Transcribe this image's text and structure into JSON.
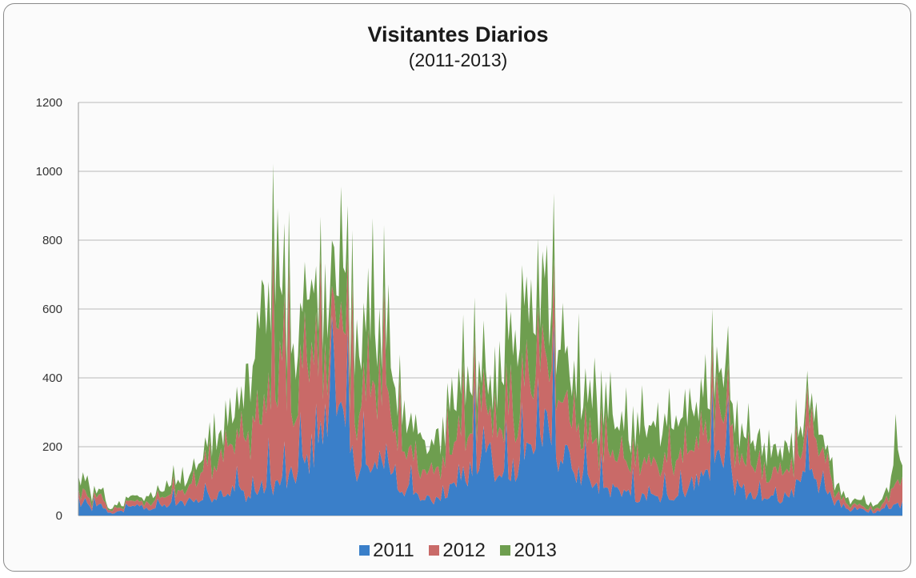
{
  "chart_data": {
    "type": "area",
    "stacked": true,
    "title": "Visitantes Diarios",
    "subtitle": "(2011-2013)",
    "ylim": [
      0,
      1200
    ],
    "yticks": [
      0,
      200,
      400,
      600,
      800,
      1000,
      1200
    ],
    "grid": true,
    "legend_position": "bottom",
    "point_count": 365,
    "series": [
      {
        "name": "2011",
        "color": "#3a7fc9",
        "keypoints": [
          [
            0,
            30
          ],
          [
            3,
            45
          ],
          [
            6,
            20
          ],
          [
            10,
            35
          ],
          [
            14,
            5
          ],
          [
            16,
            10
          ],
          [
            20,
            15
          ],
          [
            24,
            40
          ],
          [
            28,
            20
          ],
          [
            32,
            25
          ],
          [
            36,
            30
          ],
          [
            40,
            35
          ],
          [
            44,
            40
          ],
          [
            48,
            45
          ],
          [
            52,
            50
          ],
          [
            56,
            60
          ],
          [
            60,
            70
          ],
          [
            64,
            75
          ],
          [
            68,
            85
          ],
          [
            72,
            80
          ],
          [
            76,
            60
          ],
          [
            80,
            90
          ],
          [
            84,
            100
          ],
          [
            88,
            110
          ],
          [
            92,
            110
          ],
          [
            96,
            140
          ],
          [
            100,
            170
          ],
          [
            104,
            230
          ],
          [
            108,
            280
          ],
          [
            110,
            330
          ],
          [
            112,
            370
          ],
          [
            113,
            580
          ],
          [
            114,
            520
          ],
          [
            116,
            340
          ],
          [
            118,
            250
          ],
          [
            120,
            200
          ],
          [
            124,
            170
          ],
          [
            128,
            150
          ],
          [
            132,
            140
          ],
          [
            136,
            220
          ],
          [
            140,
            100
          ],
          [
            144,
            90
          ],
          [
            146,
            80
          ],
          [
            150,
            60
          ],
          [
            154,
            50
          ],
          [
            158,
            60
          ],
          [
            162,
            80
          ],
          [
            166,
            100
          ],
          [
            170,
            130
          ],
          [
            174,
            150
          ],
          [
            178,
            200
          ],
          [
            180,
            260
          ],
          [
            182,
            150
          ],
          [
            186,
            120
          ],
          [
            190,
            150
          ],
          [
            194,
            180
          ],
          [
            198,
            220
          ],
          [
            202,
            240
          ],
          [
            206,
            280
          ],
          [
            210,
            250
          ],
          [
            214,
            190
          ],
          [
            218,
            170
          ],
          [
            222,
            120
          ],
          [
            226,
            100
          ],
          [
            230,
            85
          ],
          [
            234,
            90
          ],
          [
            238,
            80
          ],
          [
            242,
            70
          ],
          [
            246,
            60
          ],
          [
            250,
            60
          ],
          [
            254,
            60
          ],
          [
            258,
            55
          ],
          [
            262,
            70
          ],
          [
            266,
            80
          ],
          [
            270,
            100
          ],
          [
            274,
            120
          ],
          [
            278,
            150
          ],
          [
            282,
            200
          ],
          [
            286,
            230
          ],
          [
            290,
            100
          ],
          [
            294,
            70
          ],
          [
            298,
            60
          ],
          [
            302,
            50
          ],
          [
            306,
            60
          ],
          [
            310,
            60
          ],
          [
            314,
            70
          ],
          [
            318,
            100
          ],
          [
            322,
            130
          ],
          [
            326,
            110
          ],
          [
            330,
            80
          ],
          [
            334,
            50
          ],
          [
            338,
            30
          ],
          [
            342,
            15
          ],
          [
            346,
            20
          ],
          [
            350,
            10
          ],
          [
            354,
            15
          ],
          [
            358,
            30
          ],
          [
            362,
            40
          ],
          [
            364,
            30
          ]
        ]
      },
      {
        "name": "2012",
        "color": "#c96a68",
        "keypoints": [
          [
            0,
            30
          ],
          [
            3,
            35
          ],
          [
            6,
            15
          ],
          [
            10,
            30
          ],
          [
            14,
            10
          ],
          [
            16,
            10
          ],
          [
            20,
            10
          ],
          [
            24,
            20
          ],
          [
            28,
            15
          ],
          [
            32,
            20
          ],
          [
            36,
            25
          ],
          [
            40,
            30
          ],
          [
            44,
            35
          ],
          [
            48,
            40
          ],
          [
            52,
            60
          ],
          [
            56,
            90
          ],
          [
            60,
            110
          ],
          [
            64,
            120
          ],
          [
            68,
            140
          ],
          [
            72,
            130
          ],
          [
            76,
            180
          ],
          [
            80,
            230
          ],
          [
            84,
            320
          ],
          [
            88,
            380
          ],
          [
            90,
            460
          ],
          [
            94,
            200
          ],
          [
            98,
            250
          ],
          [
            102,
            280
          ],
          [
            106,
            260
          ],
          [
            110,
            170
          ],
          [
            112,
            150
          ],
          [
            113,
            150
          ],
          [
            114,
            150
          ],
          [
            116,
            280
          ],
          [
            118,
            270
          ],
          [
            120,
            200
          ],
          [
            124,
            220
          ],
          [
            128,
            240
          ],
          [
            132,
            260
          ],
          [
            136,
            300
          ],
          [
            140,
            160
          ],
          [
            144,
            120
          ],
          [
            146,
            100
          ],
          [
            150,
            90
          ],
          [
            154,
            80
          ],
          [
            158,
            100
          ],
          [
            162,
            120
          ],
          [
            166,
            130
          ],
          [
            170,
            140
          ],
          [
            174,
            130
          ],
          [
            178,
            150
          ],
          [
            180,
            160
          ],
          [
            182,
            100
          ],
          [
            186,
            130
          ],
          [
            190,
            160
          ],
          [
            194,
            180
          ],
          [
            198,
            200
          ],
          [
            202,
            230
          ],
          [
            206,
            220
          ],
          [
            210,
            190
          ],
          [
            214,
            170
          ],
          [
            218,
            160
          ],
          [
            222,
            100
          ],
          [
            226,
            110
          ],
          [
            230,
            120
          ],
          [
            234,
            110
          ],
          [
            238,
            100
          ],
          [
            242,
            90
          ],
          [
            246,
            90
          ],
          [
            250,
            100
          ],
          [
            254,
            90
          ],
          [
            258,
            90
          ],
          [
            262,
            100
          ],
          [
            266,
            110
          ],
          [
            270,
            120
          ],
          [
            274,
            140
          ],
          [
            278,
            130
          ],
          [
            282,
            120
          ],
          [
            286,
            130
          ],
          [
            290,
            100
          ],
          [
            294,
            90
          ],
          [
            298,
            90
          ],
          [
            302,
            80
          ],
          [
            306,
            80
          ],
          [
            310,
            80
          ],
          [
            314,
            80
          ],
          [
            318,
            90
          ],
          [
            322,
            120
          ],
          [
            326,
            110
          ],
          [
            330,
            70
          ],
          [
            334,
            40
          ],
          [
            338,
            20
          ],
          [
            342,
            15
          ],
          [
            346,
            10
          ],
          [
            350,
            10
          ],
          [
            354,
            10
          ],
          [
            358,
            30
          ],
          [
            362,
            80
          ],
          [
            364,
            100
          ]
        ]
      },
      {
        "name": "2013",
        "color": "#6e9e4f",
        "keypoints": [
          [
            0,
            50
          ],
          [
            3,
            40
          ],
          [
            6,
            20
          ],
          [
            10,
            20
          ],
          [
            14,
            5
          ],
          [
            16,
            10
          ],
          [
            20,
            10
          ],
          [
            24,
            15
          ],
          [
            28,
            15
          ],
          [
            32,
            20
          ],
          [
            36,
            20
          ],
          [
            40,
            25
          ],
          [
            44,
            35
          ],
          [
            48,
            40
          ],
          [
            52,
            50
          ],
          [
            56,
            60
          ],
          [
            60,
            70
          ],
          [
            64,
            80
          ],
          [
            68,
            100
          ],
          [
            72,
            120
          ],
          [
            76,
            200
          ],
          [
            80,
            260
          ],
          [
            84,
            300
          ],
          [
            88,
            350
          ],
          [
            90,
            200
          ],
          [
            94,
            150
          ],
          [
            98,
            180
          ],
          [
            102,
            190
          ],
          [
            106,
            200
          ],
          [
            110,
            150
          ],
          [
            112,
            120
          ],
          [
            113,
            190
          ],
          [
            114,
            140
          ],
          [
            116,
            160
          ],
          [
            118,
            170
          ],
          [
            120,
            150
          ],
          [
            124,
            180
          ],
          [
            128,
            200
          ],
          [
            132,
            210
          ],
          [
            136,
            160
          ],
          [
            140,
            130
          ],
          [
            144,
            120
          ],
          [
            146,
            110
          ],
          [
            150,
            100
          ],
          [
            154,
            90
          ],
          [
            158,
            100
          ],
          [
            162,
            110
          ],
          [
            166,
            120
          ],
          [
            170,
            120
          ],
          [
            174,
            110
          ],
          [
            178,
            100
          ],
          [
            180,
            100
          ],
          [
            182,
            100
          ],
          [
            186,
            140
          ],
          [
            190,
            200
          ],
          [
            194,
            220
          ],
          [
            198,
            230
          ],
          [
            202,
            200
          ],
          [
            206,
            180
          ],
          [
            210,
            170
          ],
          [
            214,
            160
          ],
          [
            218,
            150
          ],
          [
            222,
            130
          ],
          [
            226,
            120
          ],
          [
            230,
            120
          ],
          [
            234,
            110
          ],
          [
            238,
            110
          ],
          [
            242,
            100
          ],
          [
            246,
            100
          ],
          [
            250,
            110
          ],
          [
            254,
            110
          ],
          [
            258,
            110
          ],
          [
            262,
            120
          ],
          [
            266,
            120
          ],
          [
            270,
            120
          ],
          [
            274,
            110
          ],
          [
            278,
            100
          ],
          [
            282,
            110
          ],
          [
            286,
            140
          ],
          [
            290,
            90
          ],
          [
            294,
            80
          ],
          [
            298,
            70
          ],
          [
            302,
            70
          ],
          [
            306,
            70
          ],
          [
            310,
            70
          ],
          [
            314,
            70
          ],
          [
            318,
            60
          ],
          [
            322,
            70
          ],
          [
            326,
            60
          ],
          [
            330,
            40
          ],
          [
            334,
            30
          ],
          [
            338,
            20
          ],
          [
            342,
            15
          ],
          [
            346,
            15
          ],
          [
            350,
            15
          ],
          [
            354,
            10
          ],
          [
            358,
            40
          ],
          [
            362,
            120
          ],
          [
            364,
            30
          ]
        ]
      }
    ]
  }
}
